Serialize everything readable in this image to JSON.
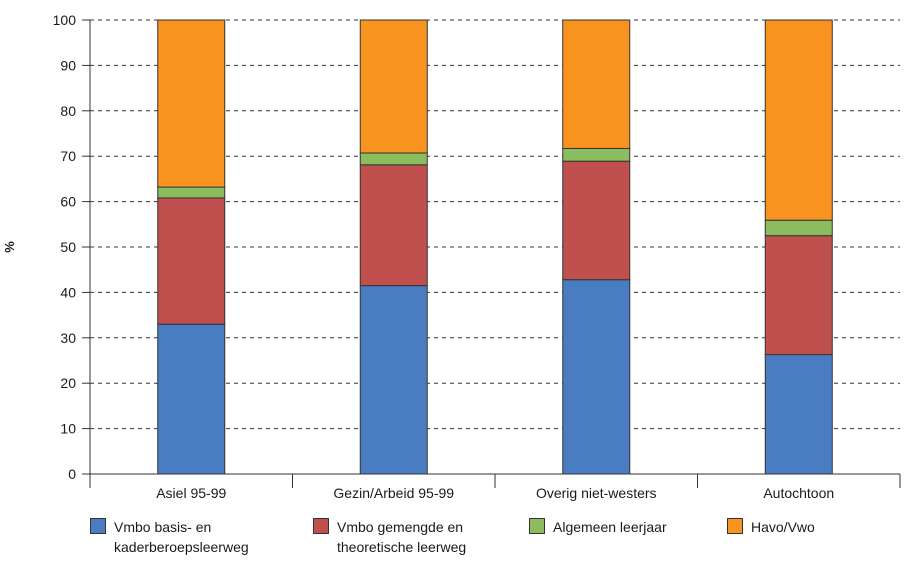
{
  "chart_data": {
    "type": "bar",
    "stacked": true,
    "ylabel": "%",
    "ylim": [
      0,
      100
    ],
    "yticks": [
      0,
      10,
      20,
      30,
      40,
      50,
      60,
      70,
      80,
      90,
      100
    ],
    "grid": "horizontal dashed",
    "legend_position": "bottom",
    "categories": [
      "Asiel 95-99",
      "Gezin/Arbeid 95-99",
      "Overig niet-westers",
      "Autochtoon"
    ],
    "series": [
      {
        "name": "Vmbo basis- en kaderberoepsleerweg",
        "legend_lines": [
          "Vmbo basis- en",
          "kaderberoepsleerweg"
        ],
        "color": "#4a7cc2",
        "values": [
          33,
          41.5,
          42.8,
          26.3
        ]
      },
      {
        "name": "Vmbo gemengde en theoretische leerweg",
        "legend_lines": [
          "Vmbo gemengde en",
          "theoretische leerweg"
        ],
        "color": "#c0504d",
        "values": [
          27.8,
          26.6,
          26.1,
          26.2
        ]
      },
      {
        "name": "Algemeen leerjaar",
        "legend_lines": [
          "Algemeen leerjaar"
        ],
        "color": "#8bbd5f",
        "values": [
          2.4,
          2.6,
          2.8,
          3.4
        ]
      },
      {
        "name": "Havo/Vwo",
        "legend_lines": [
          "Havo/Vwo"
        ],
        "color": "#f7931e",
        "values": [
          36.8,
          29.3,
          28.3,
          44.1
        ]
      }
    ]
  }
}
